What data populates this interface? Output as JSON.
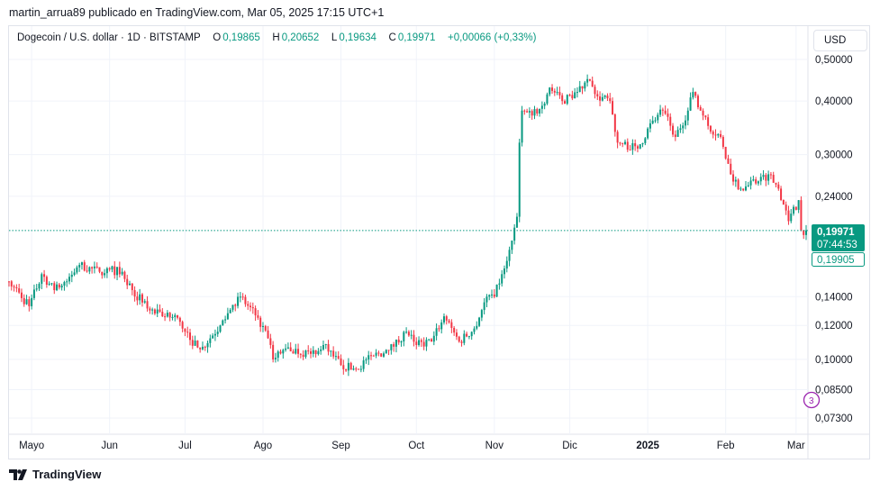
{
  "header": {
    "published": "martin_arrua89 publicado en TradingView.com, Mar 05, 2025 17:15 UTC+1"
  },
  "legend": {
    "symbol": "Dogecoin / U.S. dollar · 1D · BITSTAMP",
    "open_label": "O",
    "open": "0,19865",
    "high_label": "H",
    "high": "0,20652",
    "low_label": "L",
    "low": "0,19634",
    "close_label": "C",
    "close": "0,19971",
    "change": "+0,00066 (+0,33%)"
  },
  "currency_button": "USD",
  "price_badge": {
    "price": "0,19971",
    "countdown": "07:44:53",
    "secondary": "0,19905"
  },
  "footer": {
    "brand": "TradingView"
  },
  "colors": {
    "up": "#089981",
    "down": "#F23645",
    "event": "#9c27b0"
  },
  "chart_data": {
    "type": "candlestick",
    "scale": "log",
    "ylim": [
      0.066,
      0.56
    ],
    "y_ticks": [
      {
        "value": 0.5,
        "label": "0,50000"
      },
      {
        "value": 0.4,
        "label": "0,40000"
      },
      {
        "value": 0.3,
        "label": "0,30000"
      },
      {
        "value": 0.24,
        "label": "0,24000"
      },
      {
        "value": 0.14,
        "label": "0,14000"
      },
      {
        "value": 0.12,
        "label": "0,12000"
      },
      {
        "value": 0.1,
        "label": "0,10000"
      },
      {
        "value": 0.085,
        "label": "0,08500"
      },
      {
        "value": 0.073,
        "label": "0,07300"
      }
    ],
    "x_ticks": [
      {
        "date": "2024-05-01",
        "label": "Mayo"
      },
      {
        "date": "2024-06-01",
        "label": "Jun"
      },
      {
        "date": "2024-07-01",
        "label": "Jul"
      },
      {
        "date": "2024-08-01",
        "label": "Ago"
      },
      {
        "date": "2024-09-01",
        "label": "Sep"
      },
      {
        "date": "2024-10-01",
        "label": "Oct"
      },
      {
        "date": "2024-11-01",
        "label": "Nov"
      },
      {
        "date": "2024-12-01",
        "label": "Dic"
      },
      {
        "date": "2025-01-01",
        "label": "2025"
      },
      {
        "date": "2025-02-01",
        "label": "Feb"
      },
      {
        "date": "2025-03-01",
        "label": "Mar"
      }
    ],
    "xlim": [
      "2024-04-22",
      "2025-03-05"
    ],
    "last_price": 0.19971,
    "anchor_closes": [
      [
        "2024-04-22",
        0.152
      ],
      [
        "2024-04-30",
        0.133
      ],
      [
        "2024-05-05",
        0.158
      ],
      [
        "2024-05-10",
        0.145
      ],
      [
        "2024-05-15",
        0.152
      ],
      [
        "2024-05-20",
        0.166
      ],
      [
        "2024-05-28",
        0.16
      ],
      [
        "2024-06-01",
        0.162
      ],
      [
        "2024-06-06",
        0.16
      ],
      [
        "2024-06-10",
        0.145
      ],
      [
        "2024-06-17",
        0.13
      ],
      [
        "2024-06-22",
        0.126
      ],
      [
        "2024-06-28",
        0.125
      ],
      [
        "2024-07-03",
        0.111
      ],
      [
        "2024-07-08",
        0.107
      ],
      [
        "2024-07-15",
        0.12
      ],
      [
        "2024-07-20",
        0.134
      ],
      [
        "2024-07-23",
        0.14
      ],
      [
        "2024-07-30",
        0.125
      ],
      [
        "2024-08-03",
        0.112
      ],
      [
        "2024-08-05",
        0.1
      ],
      [
        "2024-08-10",
        0.106
      ],
      [
        "2024-08-20",
        0.103
      ],
      [
        "2024-08-25",
        0.108
      ],
      [
        "2024-09-01",
        0.097
      ],
      [
        "2024-09-07",
        0.095
      ],
      [
        "2024-09-14",
        0.102
      ],
      [
        "2024-09-20",
        0.105
      ],
      [
        "2024-09-27",
        0.116
      ],
      [
        "2024-10-01",
        0.108
      ],
      [
        "2024-10-07",
        0.11
      ],
      [
        "2024-10-12",
        0.126
      ],
      [
        "2024-10-18",
        0.11
      ],
      [
        "2024-10-24",
        0.118
      ],
      [
        "2024-10-29",
        0.14
      ],
      [
        "2024-11-01",
        0.14
      ],
      [
        "2024-11-04",
        0.158
      ],
      [
        "2024-11-07",
        0.18
      ],
      [
        "2024-11-10",
        0.215
      ],
      [
        "2024-11-11",
        0.32
      ],
      [
        "2024-11-12",
        0.38
      ],
      [
        "2024-11-16",
        0.37
      ],
      [
        "2024-11-20",
        0.39
      ],
      [
        "2024-11-23",
        0.43
      ],
      [
        "2024-11-28",
        0.4
      ],
      [
        "2024-12-04",
        0.42
      ],
      [
        "2024-12-08",
        0.45
      ],
      [
        "2024-12-12",
        0.41
      ],
      [
        "2024-12-17",
        0.4
      ],
      [
        "2024-12-20",
        0.32
      ],
      [
        "2024-12-28",
        0.31
      ],
      [
        "2025-01-03",
        0.36
      ],
      [
        "2025-01-07",
        0.38
      ],
      [
        "2025-01-12",
        0.33
      ],
      [
        "2025-01-17",
        0.38
      ],
      [
        "2025-01-19",
        0.42
      ],
      [
        "2025-01-25",
        0.35
      ],
      [
        "2025-01-30",
        0.33
      ],
      [
        "2025-02-03",
        0.27
      ],
      [
        "2025-02-07",
        0.25
      ],
      [
        "2025-02-14",
        0.26
      ],
      [
        "2025-02-18",
        0.27
      ],
      [
        "2025-02-22",
        0.25
      ],
      [
        "2025-02-26",
        0.21
      ],
      [
        "2025-03-02",
        0.235
      ],
      [
        "2025-03-03",
        0.2
      ],
      [
        "2025-03-05",
        0.19971
      ]
    ]
  }
}
